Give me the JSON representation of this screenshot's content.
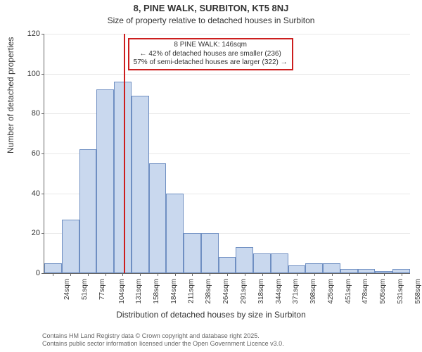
{
  "title": {
    "main": "8, PINE WALK, SURBITON, KT5 8NJ",
    "sub": "Size of property relative to detached houses in Surbiton",
    "fontsize_main": 13,
    "fontsize_sub": 12
  },
  "axes": {
    "ylabel": "Number of detached properties",
    "xlabel": "Distribution of detached houses by size in Surbiton",
    "ylim": [
      0,
      120
    ],
    "ytick_step": 20,
    "label_fontsize": 12,
    "tick_fontsize": 11,
    "grid_color": "#e8e8e8",
    "axis_color": "#666666"
  },
  "histogram": {
    "type": "histogram",
    "bar_fill": "#c9d8ee",
    "bar_stroke": "#6f8fc2",
    "categories": [
      "24sqm",
      "51sqm",
      "77sqm",
      "104sqm",
      "131sqm",
      "158sqm",
      "184sqm",
      "211sqm",
      "238sqm",
      "264sqm",
      "291sqm",
      "318sqm",
      "344sqm",
      "371sqm",
      "398sqm",
      "425sqm",
      "451sqm",
      "478sqm",
      "505sqm",
      "531sqm",
      "558sqm"
    ],
    "values": [
      5,
      27,
      62,
      92,
      96,
      89,
      55,
      40,
      20,
      20,
      8,
      13,
      10,
      10,
      4,
      5,
      5,
      2,
      2,
      1,
      2
    ],
    "xtick_fontsize": 10
  },
  "marker": {
    "color": "#cc1e1e",
    "x_category_index": 4.55
  },
  "annotation": {
    "border_color": "#cc1e1e",
    "lines": [
      "8 PINE WALK: 146sqm",
      "← 42% of detached houses are smaller (236)",
      "57% of semi-detached houses are larger (322) →"
    ],
    "fontsize": 10
  },
  "footer": {
    "line1": "Contains HM Land Registry data © Crown copyright and database right 2025.",
    "line2": "Contains public sector information licensed under the Open Government Licence v3.0.",
    "fontsize": 9,
    "color": "#666666"
  },
  "colors": {
    "background": "#ffffff",
    "text": "#333333"
  }
}
